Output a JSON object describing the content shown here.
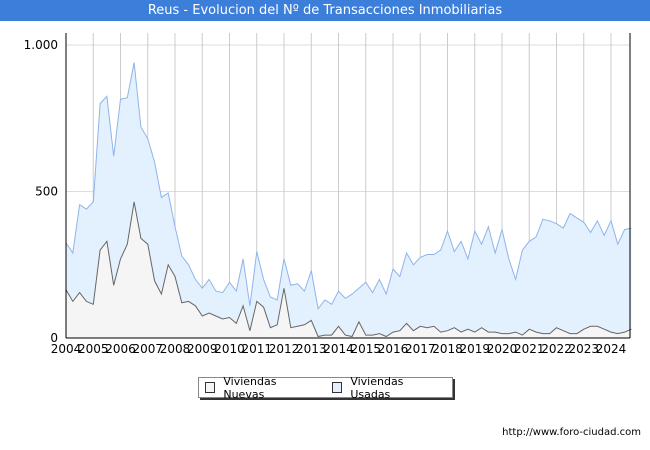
{
  "title": "Reus - Evolucion del Nº de Transacciones Inmobiliarias",
  "footer_url": "http://www.foro-ciudad.com",
  "chart_data": {
    "type": "area",
    "title": "Reus - Evolucion del Nº de Transacciones Inmobiliarias",
    "xlabel": "",
    "ylabel": "",
    "x_start": 2004,
    "periods_per_year": 4,
    "x_tick_labels": [
      "2004",
      "2005",
      "2006",
      "2007",
      "2008",
      "2009",
      "2010",
      "2011",
      "2012",
      "2013",
      "2014",
      "2015",
      "2016",
      "2017",
      "2018",
      "2019",
      "2020",
      "2021",
      "2022",
      "2023",
      "2024"
    ],
    "y_tick_values": [
      0,
      500,
      1000
    ],
    "y_tick_labels": [
      "0",
      "500",
      "1.000"
    ],
    "ylim": [
      0,
      1000
    ],
    "grid": true,
    "legend_position": "bottom-center",
    "series": [
      {
        "name": "Viviendas Nuevas",
        "color": "#666666",
        "fill": "#f5f5f5",
        "values": [
          165,
          125,
          155,
          125,
          115,
          300,
          330,
          180,
          270,
          320,
          465,
          340,
          320,
          195,
          150,
          250,
          210,
          120,
          125,
          110,
          75,
          85,
          75,
          65,
          70,
          50,
          110,
          25,
          125,
          105,
          35,
          45,
          170,
          35,
          40,
          45,
          60,
          5,
          10,
          10,
          40,
          10,
          5,
          55,
          10,
          10,
          15,
          5,
          20,
          25,
          50,
          25,
          40,
          35,
          40,
          20,
          25,
          35,
          20,
          30,
          20,
          35,
          20,
          20,
          15,
          15,
          20,
          10,
          30,
          20,
          15,
          15,
          35,
          25,
          15,
          15,
          30,
          40,
          40,
          30,
          20,
          15,
          20,
          30
        ]
      },
      {
        "name": "Viviendas Usadas",
        "color": "#8fb4ec",
        "fill": "#e3f0fe",
        "values": [
          325,
          290,
          455,
          440,
          465,
          800,
          825,
          620,
          815,
          820,
          940,
          720,
          680,
          600,
          480,
          495,
          380,
          280,
          250,
          200,
          170,
          200,
          160,
          155,
          190,
          160,
          270,
          110,
          295,
          200,
          140,
          130,
          270,
          180,
          185,
          160,
          230,
          100,
          130,
          115,
          160,
          135,
          150,
          170,
          190,
          155,
          200,
          150,
          235,
          210,
          290,
          250,
          275,
          285,
          285,
          300,
          365,
          295,
          330,
          270,
          365,
          320,
          380,
          290,
          370,
          270,
          200,
          300,
          330,
          345,
          405,
          400,
          390,
          375,
          425,
          410,
          395,
          360,
          400,
          350,
          400,
          320,
          370,
          375
        ]
      }
    ]
  }
}
